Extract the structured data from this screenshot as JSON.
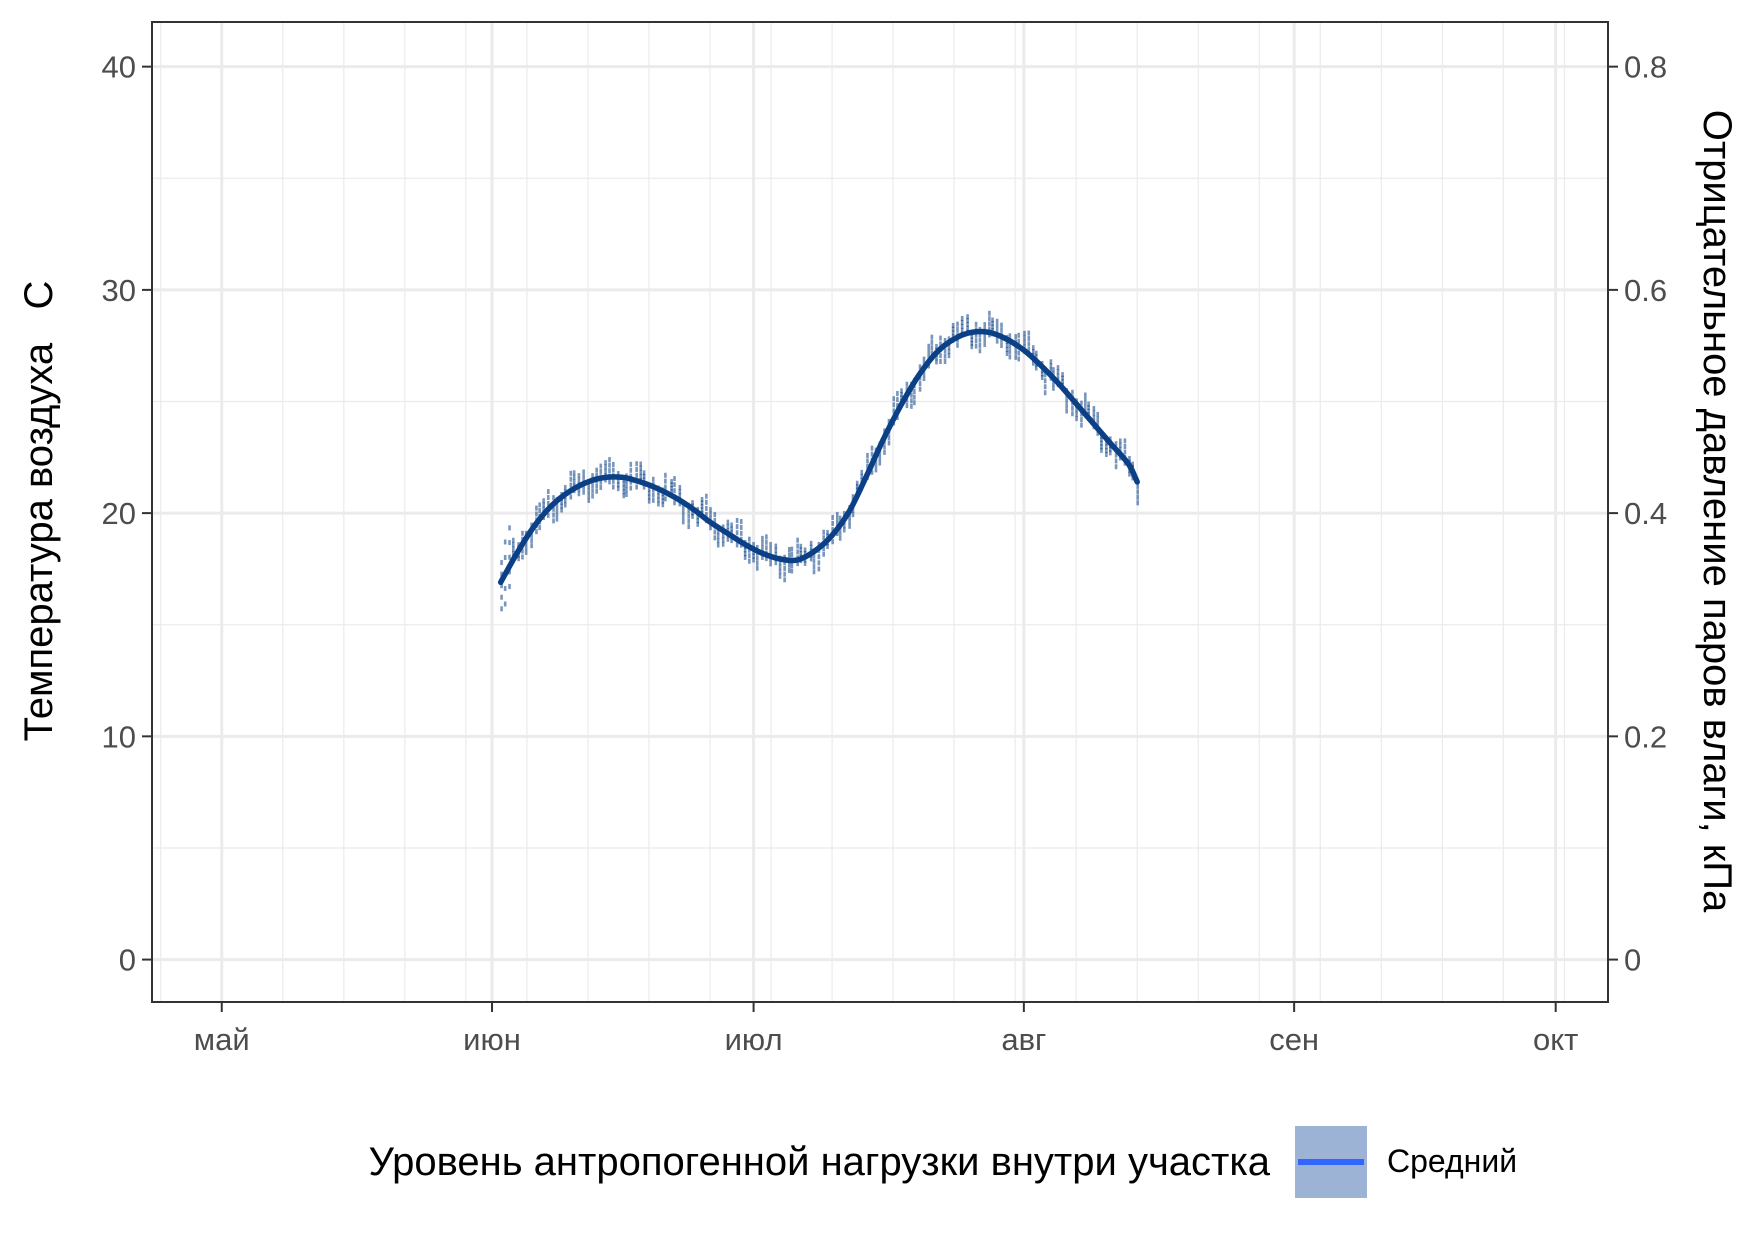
{
  "chart_data": {
    "type": "line",
    "title": "",
    "ylabel": "Температура воздуха   С",
    "y2label": "Отрицательное давление паров влаги, кПа",
    "xlabel": "",
    "x_axis": {
      "type": "date",
      "range": [
        "2021-04-23",
        "2021-10-07"
      ],
      "ticks": [
        {
          "date": "2021-05-01",
          "label": "май"
        },
        {
          "date": "2021-06-01",
          "label": "июн"
        },
        {
          "date": "2021-07-01",
          "label": "июл"
        },
        {
          "date": "2021-08-01",
          "label": "авг"
        },
        {
          "date": "2021-09-01",
          "label": "сен"
        },
        {
          "date": "2021-10-01",
          "label": "окт"
        }
      ]
    },
    "y_axis": {
      "range": [
        -1.9,
        42.0
      ],
      "ticks": [
        0,
        10,
        20,
        30,
        40
      ]
    },
    "y2_axis": {
      "range": [
        -0.038,
        0.84
      ],
      "ticks": [
        {
          "value": 0,
          "label": "0"
        },
        {
          "value": 0.2,
          "label": "0.2"
        },
        {
          "value": 0.4,
          "label": "0.4"
        },
        {
          "value": 0.6,
          "label": "0.6"
        },
        {
          "value": 0.8,
          "label": "0.8"
        }
      ]
    },
    "grid": true,
    "legend": {
      "position": "bottom",
      "title": "Уровень антропогенной нагрузки внутри участка"
    },
    "series": [
      {
        "name": "Средний",
        "kind": "smooth",
        "color": "#0b3f86",
        "legend_line_color": "#3366ff",
        "legend_fill_color": "#9db3d6",
        "points": [
          {
            "x": "2021-06-02",
            "y": 16.9
          },
          {
            "x": "2021-06-04",
            "y": 18.3
          },
          {
            "x": "2021-06-06",
            "y": 19.5
          },
          {
            "x": "2021-06-08",
            "y": 20.4
          },
          {
            "x": "2021-06-10",
            "y": 21.0
          },
          {
            "x": "2021-06-12",
            "y": 21.4
          },
          {
            "x": "2021-06-14",
            "y": 21.6
          },
          {
            "x": "2021-06-16",
            "y": 21.6
          },
          {
            "x": "2021-06-18",
            "y": 21.4
          },
          {
            "x": "2021-06-20",
            "y": 21.1
          },
          {
            "x": "2021-06-22",
            "y": 20.7
          },
          {
            "x": "2021-06-24",
            "y": 20.2
          },
          {
            "x": "2021-06-26",
            "y": 19.6
          },
          {
            "x": "2021-06-28",
            "y": 19.1
          },
          {
            "x": "2021-06-30",
            "y": 18.6
          },
          {
            "x": "2021-07-02",
            "y": 18.2
          },
          {
            "x": "2021-07-04",
            "y": 17.95
          },
          {
            "x": "2021-07-06",
            "y": 17.9
          },
          {
            "x": "2021-07-08",
            "y": 18.3
          },
          {
            "x": "2021-07-10",
            "y": 19.0
          },
          {
            "x": "2021-07-12",
            "y": 20.1
          },
          {
            "x": "2021-07-14",
            "y": 21.7
          },
          {
            "x": "2021-07-16",
            "y": 23.4
          },
          {
            "x": "2021-07-18",
            "y": 24.9
          },
          {
            "x": "2021-07-20",
            "y": 26.2
          },
          {
            "x": "2021-07-22",
            "y": 27.2
          },
          {
            "x": "2021-07-24",
            "y": 27.8
          },
          {
            "x": "2021-07-26",
            "y": 28.1
          },
          {
            "x": "2021-07-28",
            "y": 28.1
          },
          {
            "x": "2021-07-30",
            "y": 27.8
          },
          {
            "x": "2021-08-01",
            "y": 27.3
          },
          {
            "x": "2021-08-03",
            "y": 26.6
          },
          {
            "x": "2021-08-05",
            "y": 25.8
          },
          {
            "x": "2021-08-07",
            "y": 24.9
          },
          {
            "x": "2021-08-09",
            "y": 24.0
          },
          {
            "x": "2021-08-11",
            "y": 23.1
          },
          {
            "x": "2021-08-13",
            "y": 22.2
          },
          {
            "x": "2021-08-14",
            "y": 21.4
          }
        ]
      }
    ],
    "scatter_note_values": {
      "start_spread": [
        14.3,
        20.7
      ],
      "peak_band": [
        27.5,
        28.5
      ]
    }
  }
}
